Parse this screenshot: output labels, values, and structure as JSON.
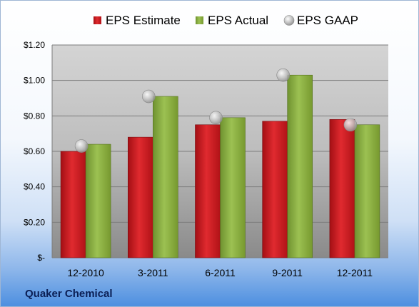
{
  "company": "Quaker Chemical",
  "chart_data": {
    "type": "bar",
    "categories": [
      "12-2010",
      "3-2011",
      "6-2011",
      "9-2011",
      "12-2011"
    ],
    "series": [
      {
        "name": "EPS Estimate",
        "type": "bar",
        "color": "#d0191f",
        "values": [
          0.6,
          0.68,
          0.75,
          0.77,
          0.78
        ]
      },
      {
        "name": "EPS Actual",
        "type": "bar",
        "color": "#8db341",
        "values": [
          0.64,
          0.91,
          0.79,
          1.03,
          0.75
        ]
      },
      {
        "name": "EPS GAAP",
        "type": "scatter",
        "color": "#b8b8b8",
        "values": [
          0.63,
          0.91,
          0.79,
          1.03,
          0.75
        ]
      }
    ],
    "ylim": [
      0,
      1.2
    ],
    "yticks": [
      0,
      0.2,
      0.4,
      0.6,
      0.8,
      1.0,
      1.2
    ],
    "ytick_labels": [
      "$-",
      "$0.20",
      "$0.40",
      "$0.60",
      "$0.80",
      "$1.00",
      "$1.20"
    ],
    "grid": true,
    "legend_position": "top"
  }
}
